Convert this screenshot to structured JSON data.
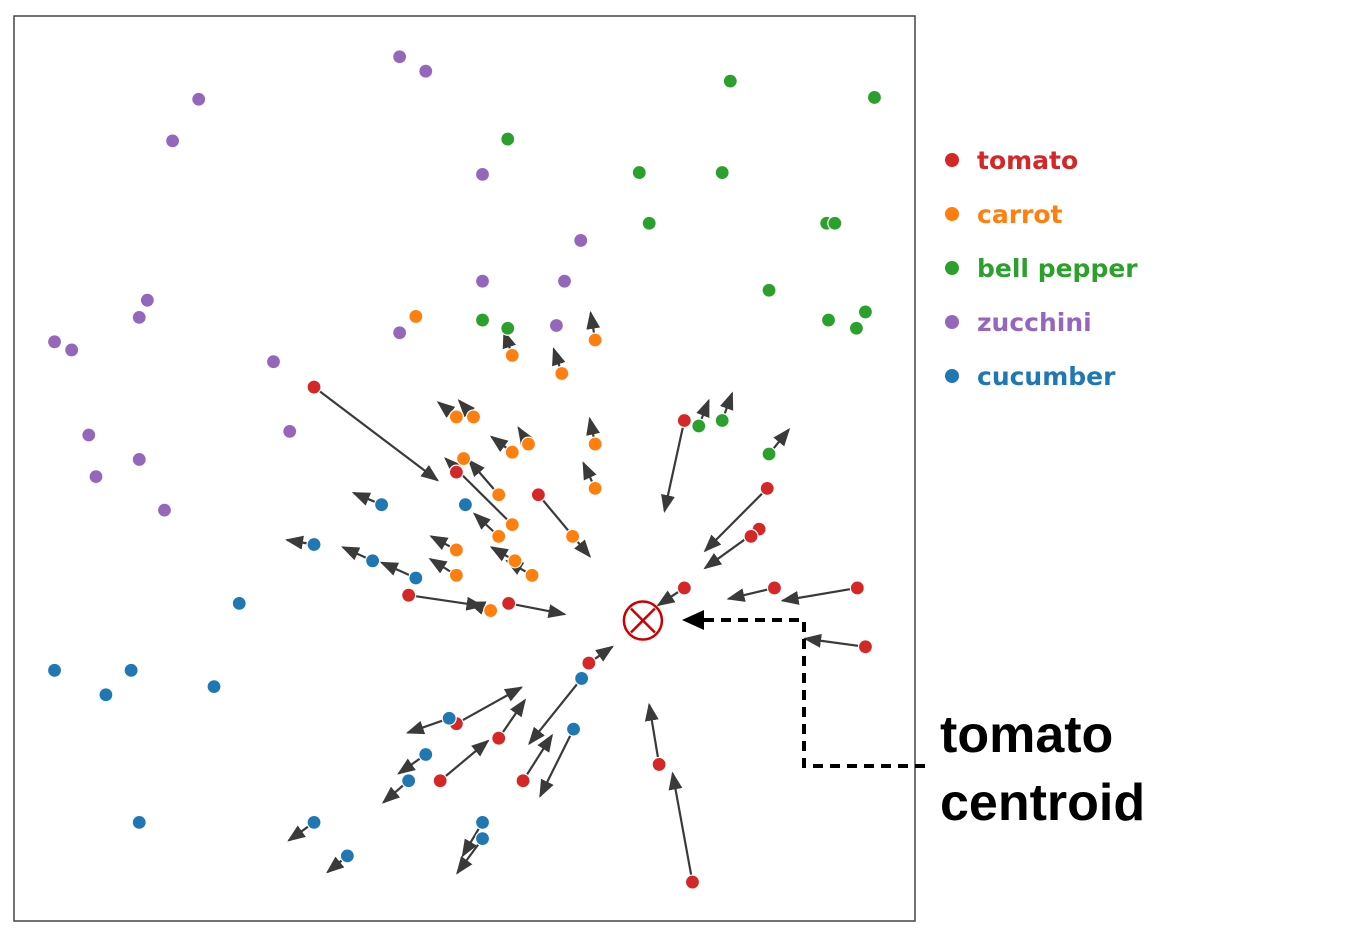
{
  "chart_data": {
    "type": "scatter",
    "title": "",
    "xlabel": "",
    "ylabel": "",
    "xlim": [
      0,
      1000
    ],
    "ylim": [
      0,
      1000
    ],
    "grid": false,
    "axis_ticks": false,
    "legend_placement": "right",
    "series": [
      {
        "name": "tomato",
        "color": "#d62728",
        "points": [
          {
            "x": 333,
            "y": 590,
            "dx": 137,
            "dy": -103
          },
          {
            "x": 491,
            "y": 496
          },
          {
            "x": 582,
            "y": 471,
            "dx": 57,
            "dy": -68
          },
          {
            "x": 438,
            "y": 360,
            "dx": 82,
            "dy": -12
          },
          {
            "x": 549,
            "y": 351,
            "dx": 62,
            "dy": -12
          },
          {
            "x": 744,
            "y": 553,
            "dx": -22,
            "dy": -100
          },
          {
            "x": 836,
            "y": 478,
            "dx": -69,
            "dy": -69
          },
          {
            "x": 827,
            "y": 433,
            "dx": -60,
            "dy": -43
          },
          {
            "x": 818,
            "y": 425
          },
          {
            "x": 744,
            "y": 368,
            "dx": -29,
            "dy": -19
          },
          {
            "x": 844,
            "y": 368,
            "dx": -51,
            "dy": -12
          },
          {
            "x": 936,
            "y": 368,
            "dx": -83,
            "dy": -14
          },
          {
            "x": 945,
            "y": 303,
            "dx": -67,
            "dy": 9
          },
          {
            "x": 638,
            "y": 285,
            "dx": 26,
            "dy": 18
          },
          {
            "x": 491,
            "y": 218,
            "dx": 72,
            "dy": 40
          },
          {
            "x": 538,
            "y": 202,
            "dx": 29,
            "dy": 42
          },
          {
            "x": 473,
            "y": 155,
            "dx": 53,
            "dy": 44
          },
          {
            "x": 565,
            "y": 155,
            "dx": 32,
            "dy": 50
          },
          {
            "x": 716,
            "y": 173,
            "dx": -11,
            "dy": 66
          },
          {
            "x": 753,
            "y": 43,
            "dx": -22,
            "dy": 120
          }
        ]
      },
      {
        "name": "carrot",
        "color": "#ff7f0e",
        "points": [
          {
            "x": 446,
            "y": 668
          },
          {
            "x": 645,
            "y": 642,
            "dx": -5,
            "dy": 30
          },
          {
            "x": 553,
            "y": 625,
            "dx": -9,
            "dy": 26
          },
          {
            "x": 608,
            "y": 605,
            "dx": -9,
            "dy": 27
          },
          {
            "x": 491,
            "y": 557,
            "dx": -20,
            "dy": 16
          },
          {
            "x": 510,
            "y": 557,
            "dx": -16,
            "dy": 18
          },
          {
            "x": 571,
            "y": 527,
            "dx": -11,
            "dy": 18
          },
          {
            "x": 553,
            "y": 518,
            "dx": -23,
            "dy": 17
          },
          {
            "x": 645,
            "y": 527,
            "dx": -6,
            "dy": 28
          },
          {
            "x": 499,
            "y": 511
          },
          {
            "x": 645,
            "y": 478,
            "dx": -13,
            "dy": 28
          },
          {
            "x": 538,
            "y": 471,
            "dx": -33,
            "dy": 38
          },
          {
            "x": 553,
            "y": 438,
            "dx": -74,
            "dy": 73
          },
          {
            "x": 620,
            "y": 425
          },
          {
            "x": 538,
            "y": 425,
            "dx": -27,
            "dy": 25
          },
          {
            "x": 491,
            "y": 410,
            "dx": -28,
            "dy": 15
          },
          {
            "x": 556,
            "y": 398,
            "dx": -26,
            "dy": 15
          },
          {
            "x": 491,
            "y": 382,
            "dx": -29,
            "dy": 18
          },
          {
            "x": 575,
            "y": 382,
            "dx": -28,
            "dy": 16
          },
          {
            "x": 529,
            "y": 343,
            "dx": -24,
            "dy": 9
          }
        ]
      },
      {
        "name": "bell pepper",
        "color": "#2ca02c",
        "points": [
          {
            "x": 795,
            "y": 928
          },
          {
            "x": 955,
            "y": 910
          },
          {
            "x": 548,
            "y": 864
          },
          {
            "x": 694,
            "y": 827
          },
          {
            "x": 786,
            "y": 827
          },
          {
            "x": 705,
            "y": 771
          },
          {
            "x": 902,
            "y": 771
          },
          {
            "x": 911,
            "y": 771
          },
          {
            "x": 838,
            "y": 697
          },
          {
            "x": 520,
            "y": 664
          },
          {
            "x": 548,
            "y": 655
          },
          {
            "x": 904,
            "y": 664
          },
          {
            "x": 945,
            "y": 673
          },
          {
            "x": 935,
            "y": 655
          },
          {
            "x": 760,
            "y": 547,
            "dx": 11,
            "dy": 28
          },
          {
            "x": 786,
            "y": 553,
            "dx": 11,
            "dy": 30
          },
          {
            "x": 838,
            "y": 516,
            "dx": 22,
            "dy": 27
          }
        ]
      },
      {
        "name": "zucchini",
        "color": "#9467bd",
        "points": [
          {
            "x": 428,
            "y": 955
          },
          {
            "x": 457,
            "y": 939
          },
          {
            "x": 205,
            "y": 908
          },
          {
            "x": 176,
            "y": 862
          },
          {
            "x": 520,
            "y": 825
          },
          {
            "x": 629,
            "y": 752
          },
          {
            "x": 520,
            "y": 707
          },
          {
            "x": 611,
            "y": 707
          },
          {
            "x": 148,
            "y": 686
          },
          {
            "x": 139,
            "y": 667
          },
          {
            "x": 602,
            "y": 658
          },
          {
            "x": 428,
            "y": 650
          },
          {
            "x": 45,
            "y": 640
          },
          {
            "x": 64,
            "y": 631
          },
          {
            "x": 288,
            "y": 618
          },
          {
            "x": 306,
            "y": 541
          },
          {
            "x": 83,
            "y": 537
          },
          {
            "x": 139,
            "y": 510
          },
          {
            "x": 91,
            "y": 491
          },
          {
            "x": 167,
            "y": 454
          }
        ]
      },
      {
        "name": "cucumber",
        "color": "#1f77b4",
        "points": [
          {
            "x": 408,
            "y": 460,
            "dx": -31,
            "dy": 13
          },
          {
            "x": 501,
            "y": 460
          },
          {
            "x": 333,
            "y": 416,
            "dx": -30,
            "dy": 5
          },
          {
            "x": 398,
            "y": 398,
            "dx": -33,
            "dy": 15
          },
          {
            "x": 446,
            "y": 379,
            "dx": -38,
            "dy": 17
          },
          {
            "x": 250,
            "y": 351
          },
          {
            "x": 45,
            "y": 277
          },
          {
            "x": 102,
            "y": 250
          },
          {
            "x": 130,
            "y": 277
          },
          {
            "x": 222,
            "y": 259
          },
          {
            "x": 630,
            "y": 268,
            "dx": -58,
            "dy": -72
          },
          {
            "x": 483,
            "y": 224,
            "dx": -46,
            "dy": -16
          },
          {
            "x": 621,
            "y": 212,
            "dx": -37,
            "dy": -74
          },
          {
            "x": 457,
            "y": 184,
            "dx": -30,
            "dy": -21
          },
          {
            "x": 438,
            "y": 155,
            "dx": -28,
            "dy": -24
          },
          {
            "x": 139,
            "y": 109
          },
          {
            "x": 333,
            "y": 109,
            "dx": -28,
            "dy": -20
          },
          {
            "x": 520,
            "y": 109,
            "dx": -22,
            "dy": -37
          },
          {
            "x": 520,
            "y": 91,
            "dx": -28,
            "dy": -38
          },
          {
            "x": 370,
            "y": 72,
            "dx": -22,
            "dy": -18
          }
        ]
      }
    ],
    "centroid": {
      "x": 698,
      "y": 332,
      "color": "#cc0000"
    },
    "annotation": {
      "lines": [
        "tomato",
        "centroid"
      ]
    }
  }
}
